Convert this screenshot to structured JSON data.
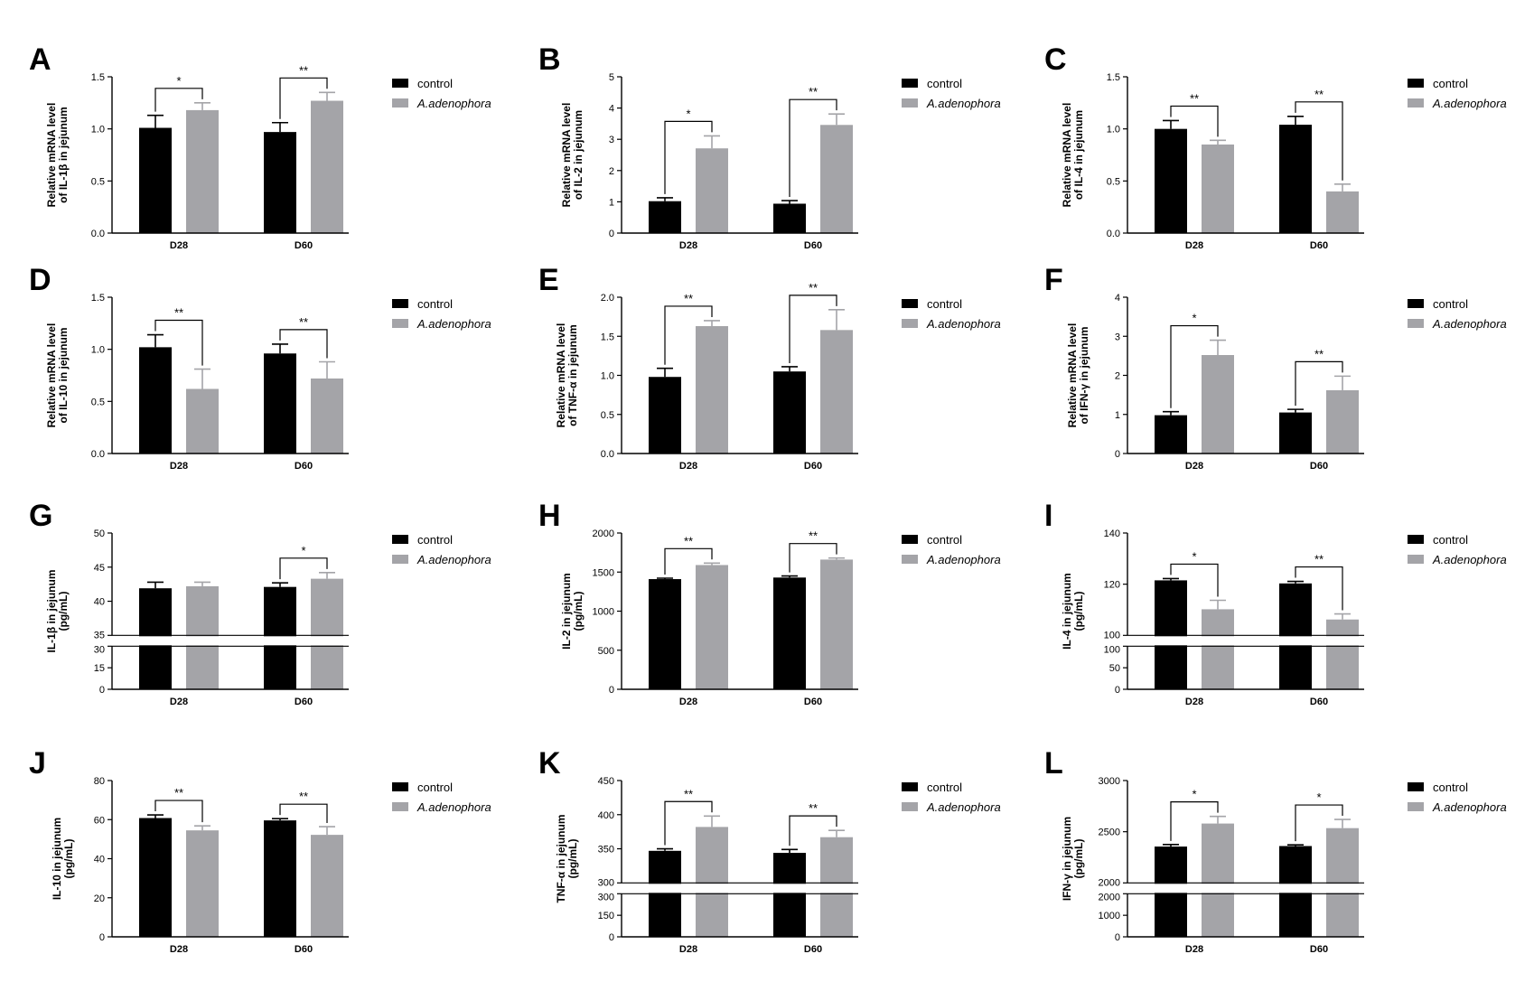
{
  "colors": {
    "control": "#000000",
    "treatment": "#a4a4a8",
    "axis": "#000000"
  },
  "legend": {
    "control": "control",
    "treatment": "A.adenophora"
  },
  "chart_data": [
    {
      "letter": "A",
      "type": "bar",
      "ylabel": [
        "Relative mRNA level",
        "of IL-1β in jejunum"
      ],
      "categories": [
        "D28",
        "D60"
      ],
      "ylim": [
        0,
        1.5
      ],
      "yticks": [
        "0.0",
        "0.5",
        "1.0",
        "1.5"
      ],
      "series": [
        {
          "name": "control",
          "values": [
            1.01,
            0.97
          ],
          "errors": [
            0.12,
            0.09
          ]
        },
        {
          "name": "A.adenophora",
          "values": [
            1.18,
            1.27
          ],
          "errors": [
            0.07,
            0.08
          ]
        }
      ],
      "significance": [
        "*",
        "**"
      ]
    },
    {
      "letter": "B",
      "type": "bar",
      "ylabel": [
        "Relative mRNA level",
        "of IL-2 in jejunum"
      ],
      "categories": [
        "D28",
        "D60"
      ],
      "ylim": [
        0,
        5
      ],
      "yticks": [
        "0",
        "1",
        "2",
        "3",
        "4",
        "5"
      ],
      "series": [
        {
          "name": "control",
          "values": [
            1.02,
            0.94
          ],
          "errors": [
            0.11,
            0.1
          ]
        },
        {
          "name": "A.adenophora",
          "values": [
            2.71,
            3.46
          ],
          "errors": [
            0.4,
            0.35
          ]
        }
      ],
      "significance": [
        "*",
        "**"
      ]
    },
    {
      "letter": "C",
      "type": "bar",
      "ylabel": [
        "Relative mRNA level",
        "of IL-4 in jejunum"
      ],
      "categories": [
        "D28",
        "D60"
      ],
      "ylim": [
        0,
        1.5
      ],
      "yticks": [
        "0.0",
        "0.5",
        "1.0",
        "1.5"
      ],
      "series": [
        {
          "name": "control",
          "values": [
            1.0,
            1.04
          ],
          "errors": [
            0.08,
            0.08
          ]
        },
        {
          "name": "A.adenophora",
          "values": [
            0.85,
            0.4
          ],
          "errors": [
            0.04,
            0.07
          ]
        }
      ],
      "significance": [
        "**",
        "**"
      ]
    },
    {
      "letter": "D",
      "type": "bar",
      "ylabel": [
        "Relative mRNA level",
        "of IL-10 in jejunum"
      ],
      "categories": [
        "D28",
        "D60"
      ],
      "ylim": [
        0,
        1.5
      ],
      "yticks": [
        "0.0",
        "0.5",
        "1.0",
        "1.5"
      ],
      "series": [
        {
          "name": "control",
          "values": [
            1.02,
            0.96
          ],
          "errors": [
            0.12,
            0.09
          ]
        },
        {
          "name": "A.adenophora",
          "values": [
            0.62,
            0.72
          ],
          "errors": [
            0.19,
            0.16
          ]
        }
      ],
      "significance": [
        "**",
        "**"
      ]
    },
    {
      "letter": "E",
      "type": "bar",
      "ylabel": [
        "Relative mRNA level",
        "of TNF-α in jejunum"
      ],
      "categories": [
        "D28",
        "D60"
      ],
      "ylim": [
        0,
        2.0
      ],
      "yticks": [
        "0.0",
        "0.5",
        "1.0",
        "1.5",
        "2.0"
      ],
      "series": [
        {
          "name": "control",
          "values": [
            0.98,
            1.05
          ],
          "errors": [
            0.11,
            0.06
          ]
        },
        {
          "name": "A.adenophora",
          "values": [
            1.63,
            1.58
          ],
          "errors": [
            0.07,
            0.26
          ]
        }
      ],
      "significance": [
        "**",
        "**"
      ]
    },
    {
      "letter": "F",
      "type": "bar",
      "ylabel": [
        "Relative mRNA level",
        "of IFN-γ in jejunum"
      ],
      "categories": [
        "D28",
        "D60"
      ],
      "ylim": [
        0,
        4
      ],
      "yticks": [
        "0",
        "1",
        "2",
        "3",
        "4"
      ],
      "series": [
        {
          "name": "control",
          "values": [
            0.98,
            1.05
          ],
          "errors": [
            0.09,
            0.08
          ]
        },
        {
          "name": "A.adenophora",
          "values": [
            2.52,
            1.62
          ],
          "errors": [
            0.38,
            0.36
          ]
        }
      ],
      "significance": [
        "*",
        "**"
      ]
    },
    {
      "letter": "G",
      "type": "bar",
      "ylabel": [
        "IL-1β in jejunum",
        "(pg/mL)"
      ],
      "categories": [
        "D28",
        "D60"
      ],
      "broken_axis": {
        "upper": [
          35,
          50
        ],
        "lower": [
          0,
          30
        ],
        "upper_ticks": [
          "35",
          "40",
          "45",
          "50"
        ],
        "lower_ticks": [
          "0",
          "15",
          "30"
        ]
      },
      "series": [
        {
          "name": "control",
          "values": [
            41.9,
            42.1
          ],
          "errors": [
            0.9,
            0.6
          ]
        },
        {
          "name": "A.adenophora",
          "values": [
            42.2,
            43.3
          ],
          "errors": [
            0.6,
            0.9
          ]
        }
      ],
      "significance": [
        null,
        "*"
      ]
    },
    {
      "letter": "H",
      "type": "bar",
      "ylabel": [
        "IL-2 in jejunum",
        "(pg/mL)"
      ],
      "categories": [
        "D28",
        "D60"
      ],
      "ylim": [
        0,
        2000
      ],
      "yticks": [
        "0",
        "500",
        "1000",
        "1500",
        "2000"
      ],
      "series": [
        {
          "name": "control",
          "values": [
            1410,
            1430
          ],
          "errors": [
            12,
            20
          ]
        },
        {
          "name": "A.adenophora",
          "values": [
            1590,
            1660
          ],
          "errors": [
            25,
            20
          ]
        }
      ],
      "significance": [
        "**",
        "**"
      ]
    },
    {
      "letter": "I",
      "type": "bar",
      "ylabel": [
        "IL-4 in jejunum",
        "(pg/mL)"
      ],
      "categories": [
        "D28",
        "D60"
      ],
      "broken_axis": {
        "upper": [
          100,
          140
        ],
        "lower": [
          0,
          100
        ],
        "upper_ticks": [
          "100",
          "120",
          "140"
        ],
        "lower_ticks": [
          "0",
          "50",
          "100"
        ]
      },
      "series": [
        {
          "name": "control",
          "values": [
            121.5,
            120.3
          ],
          "errors": [
            0.7,
            0.8
          ]
        },
        {
          "name": "A.adenophora",
          "values": [
            110.2,
            106.2
          ],
          "errors": [
            3.5,
            2.2
          ]
        }
      ],
      "significance": [
        "*",
        "**"
      ]
    },
    {
      "letter": "J",
      "type": "bar",
      "ylabel": [
        "IL-10 in jejunum",
        "(pg/mL)"
      ],
      "categories": [
        "D28",
        "D60"
      ],
      "ylim": [
        0,
        80
      ],
      "yticks": [
        "0",
        "20",
        "40",
        "60",
        "80"
      ],
      "series": [
        {
          "name": "control",
          "values": [
            60.8,
            59.6
          ],
          "errors": [
            1.6,
            0.9
          ]
        },
        {
          "name": "A.adenophora",
          "values": [
            54.5,
            52.2
          ],
          "errors": [
            2.3,
            4.2
          ]
        }
      ],
      "significance": [
        "**",
        "**"
      ]
    },
    {
      "letter": "K",
      "type": "bar",
      "ylabel": [
        "TNF-α in jejunum",
        "(pg/mL)"
      ],
      "categories": [
        "D28",
        "D60"
      ],
      "broken_axis": {
        "upper": [
          300,
          450
        ],
        "lower": [
          0,
          300
        ],
        "upper_ticks": [
          "300",
          "350",
          "400",
          "450"
        ],
        "lower_ticks": [
          "0",
          "150",
          "300"
        ]
      },
      "series": [
        {
          "name": "control",
          "values": [
            347,
            344
          ],
          "errors": [
            3,
            5
          ]
        },
        {
          "name": "A.adenophora",
          "values": [
            382,
            367
          ],
          "errors": [
            16,
            10
          ]
        }
      ],
      "significance": [
        "**",
        "**"
      ]
    },
    {
      "letter": "L",
      "type": "bar",
      "ylabel": [
        "IFN-γ in jejunum",
        "(pg/mL)"
      ],
      "categories": [
        "D28",
        "D60"
      ],
      "broken_axis": {
        "upper": [
          2000,
          3000
        ],
        "lower": [
          0,
          2000
        ],
        "upper_ticks": [
          "2000",
          "2500",
          "3000"
        ],
        "lower_ticks": [
          "0",
          "1000",
          "2000"
        ]
      },
      "series": [
        {
          "name": "control",
          "values": [
            2355,
            2360
          ],
          "errors": [
            20,
            12
          ]
        },
        {
          "name": "A.adenophora",
          "values": [
            2580,
            2535
          ],
          "errors": [
            70,
            85
          ]
        }
      ],
      "significance": [
        "*",
        "*"
      ]
    }
  ]
}
